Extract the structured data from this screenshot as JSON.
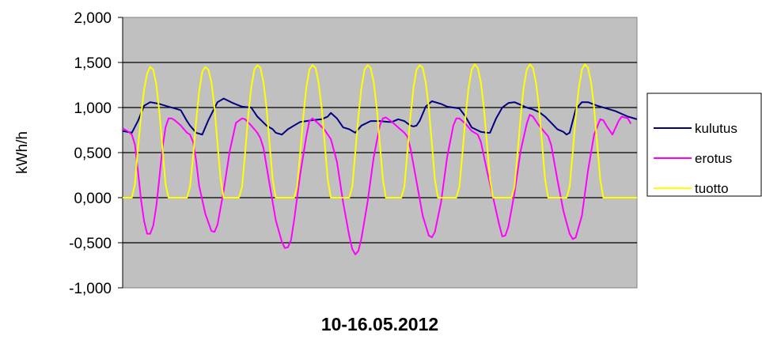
{
  "chart_data": {
    "type": "line",
    "title": "",
    "xlabel": "10-16.05.2012",
    "ylabel": "kWh/h",
    "ylim": [
      -1.0,
      2.0
    ],
    "yticks": [
      -1.0,
      -0.5,
      0.0,
      0.5,
      1.0,
      1.5,
      2.0
    ],
    "ytick_labels": [
      "-1,000",
      "-0,500",
      "0,000",
      "0,500",
      "1,000",
      "1,500",
      "2,000"
    ],
    "x_unit": "hours",
    "xlim": [
      0,
      168
    ],
    "grid": "horizontal",
    "plot_background": "#c0c0c0",
    "legend_position": "right",
    "series": [
      {
        "name": "kulutus",
        "color": "#000080",
        "points": [
          [
            0,
            0.74
          ],
          [
            3,
            0.72
          ],
          [
            5,
            0.85
          ],
          [
            7,
            1.02
          ],
          [
            9,
            1.06
          ],
          [
            12,
            1.04
          ],
          [
            15,
            1.01
          ],
          [
            17,
            0.99
          ],
          [
            19,
            0.97
          ],
          [
            21,
            0.85
          ],
          [
            22,
            0.8
          ],
          [
            24,
            0.72
          ],
          [
            26,
            0.7
          ],
          [
            28,
            0.86
          ],
          [
            31,
            1.06
          ],
          [
            33,
            1.1
          ],
          [
            36,
            1.05
          ],
          [
            39,
            1.01
          ],
          [
            42,
            1.0
          ],
          [
            44,
            0.9
          ],
          [
            47,
            0.8
          ],
          [
            49,
            0.76
          ],
          [
            50,
            0.72
          ],
          [
            52,
            0.7
          ],
          [
            54,
            0.76
          ],
          [
            58,
            0.84
          ],
          [
            62,
            0.86
          ],
          [
            65,
            0.87
          ],
          [
            67,
            0.9
          ],
          [
            68,
            0.94
          ],
          [
            70,
            0.88
          ],
          [
            72,
            0.78
          ],
          [
            74,
            0.76
          ],
          [
            76,
            0.72
          ],
          [
            78,
            0.8
          ],
          [
            81,
            0.85
          ],
          [
            84,
            0.85
          ],
          [
            87,
            0.84
          ],
          [
            88,
            0.84
          ],
          [
            90,
            0.87
          ],
          [
            92,
            0.85
          ],
          [
            94,
            0.8
          ],
          [
            95,
            0.79
          ],
          [
            96,
            0.8
          ],
          [
            97,
            0.85
          ],
          [
            99,
            1.01
          ],
          [
            101,
            1.07
          ],
          [
            104,
            1.04
          ],
          [
            106,
            1.01
          ],
          [
            108,
            1.0
          ],
          [
            110,
            0.99
          ],
          [
            112,
            0.9
          ],
          [
            114,
            0.78
          ],
          [
            117,
            0.73
          ],
          [
            119,
            0.72
          ],
          [
            120,
            0.72
          ],
          [
            122,
            0.88
          ],
          [
            124,
            1.0
          ],
          [
            126,
            1.05
          ],
          [
            128,
            1.06
          ],
          [
            130,
            1.03
          ],
          [
            132,
            1.0
          ],
          [
            134,
            0.98
          ],
          [
            136,
            0.95
          ],
          [
            138,
            0.9
          ],
          [
            140,
            0.83
          ],
          [
            142,
            0.76
          ],
          [
            144,
            0.73
          ],
          [
            145,
            0.7
          ],
          [
            146,
            0.72
          ],
          [
            148,
            0.98
          ],
          [
            150,
            1.06
          ],
          [
            152,
            1.06
          ],
          [
            155,
            1.02
          ],
          [
            158,
            0.99
          ],
          [
            161,
            0.96
          ],
          [
            163,
            0.93
          ],
          [
            165,
            0.9
          ],
          [
            166,
            0.89
          ],
          [
            168,
            0.87
          ]
        ]
      },
      {
        "name": "erotus",
        "color": "#ff00ff",
        "points": [
          [
            0,
            0.77
          ],
          [
            2,
            0.73
          ],
          [
            3,
            0.7
          ],
          [
            4,
            0.59
          ],
          [
            5,
            0.3
          ],
          [
            6,
            -0.02
          ],
          [
            7,
            -0.26
          ],
          [
            8,
            -0.4
          ],
          [
            9,
            -0.4
          ],
          [
            10,
            -0.31
          ],
          [
            11,
            -0.09
          ],
          [
            12,
            0.22
          ],
          [
            13,
            0.55
          ],
          [
            14,
            0.78
          ],
          [
            15,
            0.88
          ],
          [
            16,
            0.88
          ],
          [
            17,
            0.86
          ],
          [
            19,
            0.8
          ],
          [
            21,
            0.72
          ],
          [
            22,
            0.7
          ],
          [
            23,
            0.62
          ],
          [
            24,
            0.41
          ],
          [
            25,
            0.13
          ],
          [
            27,
            -0.18
          ],
          [
            29,
            -0.37
          ],
          [
            30,
            -0.38
          ],
          [
            31,
            -0.3
          ],
          [
            33,
            0.08
          ],
          [
            35,
            0.52
          ],
          [
            37,
            0.83
          ],
          [
            39,
            0.88
          ],
          [
            40,
            0.87
          ],
          [
            42,
            0.8
          ],
          [
            44,
            0.72
          ],
          [
            45,
            0.66
          ],
          [
            46,
            0.55
          ],
          [
            48,
            0.15
          ],
          [
            50,
            -0.25
          ],
          [
            52,
            -0.49
          ],
          [
            53,
            -0.56
          ],
          [
            54,
            -0.55
          ],
          [
            55,
            -0.47
          ],
          [
            56,
            -0.25
          ],
          [
            58,
            0.26
          ],
          [
            60,
            0.68
          ],
          [
            61,
            0.85
          ],
          [
            62,
            0.88
          ],
          [
            64,
            0.82
          ],
          [
            66,
            0.75
          ],
          [
            68,
            0.65
          ],
          [
            70,
            0.4
          ],
          [
            72,
            -0.05
          ],
          [
            74,
            -0.42
          ],
          [
            75,
            -0.57
          ],
          [
            76,
            -0.63
          ],
          [
            77,
            -0.59
          ],
          [
            78,
            -0.45
          ],
          [
            80,
            -0.05
          ],
          [
            82,
            0.45
          ],
          [
            84,
            0.8
          ],
          [
            85,
            0.88
          ],
          [
            86,
            0.89
          ],
          [
            88,
            0.84
          ],
          [
            90,
            0.78
          ],
          [
            92,
            0.72
          ],
          [
            93,
            0.68
          ],
          [
            94,
            0.55
          ],
          [
            96,
            0.18
          ],
          [
            98,
            -0.2
          ],
          [
            100,
            -0.42
          ],
          [
            101,
            -0.44
          ],
          [
            102,
            -0.38
          ],
          [
            104,
            -0.05
          ],
          [
            106,
            0.45
          ],
          [
            108,
            0.8
          ],
          [
            109,
            0.88
          ],
          [
            110,
            0.88
          ],
          [
            112,
            0.82
          ],
          [
            114,
            0.74
          ],
          [
            116,
            0.7
          ],
          [
            117,
            0.62
          ],
          [
            119,
            0.3
          ],
          [
            121,
            0.0
          ],
          [
            123,
            -0.3
          ],
          [
            124,
            -0.43
          ],
          [
            125,
            -0.42
          ],
          [
            126,
            -0.32
          ],
          [
            128,
            0.05
          ],
          [
            130,
            0.52
          ],
          [
            132,
            0.82
          ],
          [
            133,
            0.92
          ],
          [
            134,
            0.9
          ],
          [
            136,
            0.8
          ],
          [
            138,
            0.72
          ],
          [
            139,
            0.68
          ],
          [
            140,
            0.58
          ],
          [
            142,
            0.2
          ],
          [
            144,
            -0.15
          ],
          [
            146,
            -0.4
          ],
          [
            147,
            -0.46
          ],
          [
            148,
            -0.44
          ],
          [
            150,
            -0.2
          ],
          [
            152,
            0.3
          ],
          [
            154,
            0.7
          ],
          [
            156,
            0.87
          ],
          [
            157,
            0.86
          ],
          [
            158,
            0.8
          ],
          [
            160,
            0.7
          ],
          [
            162,
            0.85
          ],
          [
            163,
            0.9
          ],
          [
            165,
            0.88
          ],
          [
            166,
            0.82
          ]
        ]
      },
      {
        "name": "tuotto",
        "color": "#ffff00",
        "points": [
          [
            0,
            0.0
          ],
          [
            3,
            0.0
          ],
          [
            4,
            0.15
          ],
          [
            5,
            0.55
          ],
          [
            6,
            0.9
          ],
          [
            7,
            1.2
          ],
          [
            8,
            1.38
          ],
          [
            9,
            1.45
          ],
          [
            10,
            1.42
          ],
          [
            11,
            1.25
          ],
          [
            12,
            0.95
          ],
          [
            13,
            0.55
          ],
          [
            14,
            0.15
          ],
          [
            15,
            0.0
          ],
          [
            21,
            0.0
          ],
          [
            22,
            0.12
          ],
          [
            23,
            0.45
          ],
          [
            24,
            0.85
          ],
          [
            25,
            1.18
          ],
          [
            26,
            1.4
          ],
          [
            27,
            1.45
          ],
          [
            28,
            1.42
          ],
          [
            29,
            1.28
          ],
          [
            30,
            1.0
          ],
          [
            31,
            0.6
          ],
          [
            32,
            0.2
          ],
          [
            33,
            0.0
          ],
          [
            38,
            0.0
          ],
          [
            39,
            0.12
          ],
          [
            40,
            0.5
          ],
          [
            41,
            0.9
          ],
          [
            42,
            1.22
          ],
          [
            43,
            1.42
          ],
          [
            44,
            1.47
          ],
          [
            45,
            1.44
          ],
          [
            46,
            1.28
          ],
          [
            47,
            1.0
          ],
          [
            48,
            0.6
          ],
          [
            49,
            0.2
          ],
          [
            50,
            0.0
          ],
          [
            56,
            0.0
          ],
          [
            57,
            0.12
          ],
          [
            58,
            0.5
          ],
          [
            59,
            0.9
          ],
          [
            60,
            1.22
          ],
          [
            61,
            1.42
          ],
          [
            62,
            1.47
          ],
          [
            63,
            1.44
          ],
          [
            64,
            1.28
          ],
          [
            65,
            1.0
          ],
          [
            66,
            0.6
          ],
          [
            67,
            0.2
          ],
          [
            68,
            0.0
          ],
          [
            74,
            0.0
          ],
          [
            75,
            0.12
          ],
          [
            76,
            0.5
          ],
          [
            77,
            0.9
          ],
          [
            78,
            1.22
          ],
          [
            79,
            1.42
          ],
          [
            80,
            1.47
          ],
          [
            81,
            1.44
          ],
          [
            82,
            1.28
          ],
          [
            83,
            1.0
          ],
          [
            84,
            0.6
          ],
          [
            85,
            0.2
          ],
          [
            86,
            0.0
          ],
          [
            91,
            0.0
          ],
          [
            92,
            0.12
          ],
          [
            93,
            0.5
          ],
          [
            94,
            0.9
          ],
          [
            95,
            1.22
          ],
          [
            96,
            1.42
          ],
          [
            97,
            1.47
          ],
          [
            98,
            1.44
          ],
          [
            99,
            1.28
          ],
          [
            100,
            1.0
          ],
          [
            101,
            0.6
          ],
          [
            102,
            0.2
          ],
          [
            103,
            0.0
          ],
          [
            109,
            0.0
          ],
          [
            110,
            0.12
          ],
          [
            111,
            0.5
          ],
          [
            112,
            0.9
          ],
          [
            113,
            1.22
          ],
          [
            114,
            1.42
          ],
          [
            115,
            1.48
          ],
          [
            116,
            1.44
          ],
          [
            117,
            1.28
          ],
          [
            118,
            1.0
          ],
          [
            119,
            0.6
          ],
          [
            120,
            0.2
          ],
          [
            121,
            0.0
          ],
          [
            127,
            0.0
          ],
          [
            128,
            0.12
          ],
          [
            129,
            0.5
          ],
          [
            130,
            0.9
          ],
          [
            131,
            1.22
          ],
          [
            132,
            1.42
          ],
          [
            133,
            1.48
          ],
          [
            134,
            1.44
          ],
          [
            135,
            1.28
          ],
          [
            136,
            1.0
          ],
          [
            137,
            0.6
          ],
          [
            138,
            0.2
          ],
          [
            139,
            0.0
          ],
          [
            145,
            0.0
          ],
          [
            146,
            0.12
          ],
          [
            147,
            0.5
          ],
          [
            148,
            0.9
          ],
          [
            149,
            1.22
          ],
          [
            150,
            1.42
          ],
          [
            151,
            1.48
          ],
          [
            152,
            1.44
          ],
          [
            153,
            1.28
          ],
          [
            154,
            1.0
          ],
          [
            155,
            0.6
          ],
          [
            156,
            0.2
          ],
          [
            157,
            0.0
          ],
          [
            168,
            0.0
          ]
        ]
      }
    ]
  }
}
